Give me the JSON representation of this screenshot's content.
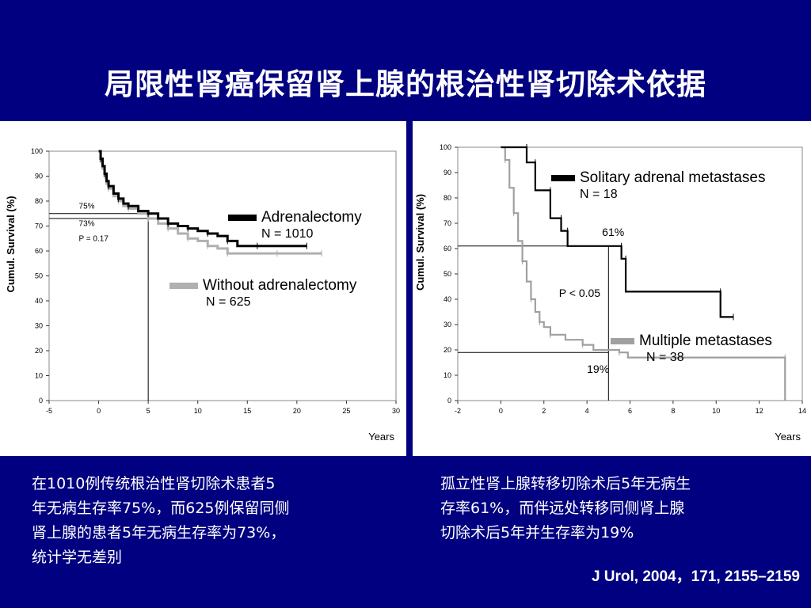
{
  "slide": {
    "title": "局限性肾癌保留肾上腺的根治性肾切除术依据",
    "caption_left": [
      "在1010例传统根治性肾切除术患者5",
      "年无病生存率75%，而625例保留同侧",
      "肾上腺的患者5年无病生存率为73%，",
      "统计学无差别"
    ],
    "caption_right": [
      "孤立性肾上腺转移切除术后5年无病生",
      "存率61%，而伴远处转移同侧肾上腺",
      "切除术后5年并生存率为19%"
    ],
    "citation": "J Urol, 2004，171, 2155–2159"
  },
  "chart_data": [
    {
      "type": "line",
      "ylabel": "Cumul. Survival (%)",
      "xlabel": "Years",
      "xlim": [
        -5,
        30
      ],
      "ylim": [
        0,
        100
      ],
      "x_ticks": [
        -5,
        0,
        5,
        10,
        15,
        20,
        25,
        30
      ],
      "y_ticks": [
        0,
        10,
        20,
        30,
        40,
        50,
        60,
        70,
        80,
        90,
        100
      ],
      "reference_lines": {
        "x": 5,
        "y": [
          75,
          73
        ]
      },
      "annotations": [
        {
          "text": "75%",
          "x": -2,
          "y": 77
        },
        {
          "text": "73%",
          "x": -2,
          "y": 70
        },
        {
          "text": "P = 0.17",
          "x": -2,
          "y": 64
        }
      ],
      "series": [
        {
          "name": "Adrenalectomy",
          "n_label": "N = 1010",
          "color": "#000000",
          "points": [
            [
              0,
              100
            ],
            [
              0.2,
              97
            ],
            [
              0.4,
              94
            ],
            [
              0.6,
              91
            ],
            [
              0.8,
              88
            ],
            [
              1,
              86
            ],
            [
              1.5,
              83
            ],
            [
              2,
              81
            ],
            [
              2.5,
              79
            ],
            [
              3,
              78
            ],
            [
              4,
              76
            ],
            [
              5,
              75
            ],
            [
              6,
              73
            ],
            [
              7,
              71
            ],
            [
              8,
              70
            ],
            [
              9,
              69
            ],
            [
              10,
              68
            ],
            [
              11,
              67
            ],
            [
              12,
              66
            ],
            [
              13,
              64
            ],
            [
              14,
              62
            ],
            [
              16,
              62
            ],
            [
              18,
              62
            ],
            [
              21,
              62
            ]
          ]
        },
        {
          "name": "Without adrenalectomy",
          "n_label": "N = 625",
          "color": "#b0b0b0",
          "points": [
            [
              0,
              100
            ],
            [
              0.2,
              96
            ],
            [
              0.4,
              93
            ],
            [
              0.6,
              90
            ],
            [
              0.8,
              87
            ],
            [
              1,
              85
            ],
            [
              1.5,
              82
            ],
            [
              2,
              80
            ],
            [
              2.5,
              78
            ],
            [
              3,
              77
            ],
            [
              4,
              75
            ],
            [
              5,
              73
            ],
            [
              6,
              71
            ],
            [
              7,
              69
            ],
            [
              8,
              67
            ],
            [
              9,
              65
            ],
            [
              10,
              64
            ],
            [
              11,
              62
            ],
            [
              12,
              61
            ],
            [
              13,
              59
            ],
            [
              15,
              59
            ],
            [
              18,
              59
            ],
            [
              20,
              59
            ],
            [
              22.5,
              59
            ]
          ]
        }
      ]
    },
    {
      "type": "line",
      "ylabel": "Cumul. Survival (%)",
      "xlabel": "Years",
      "xlim": [
        -2,
        14
      ],
      "ylim": [
        0,
        100
      ],
      "x_ticks": [
        -2,
        0,
        2,
        4,
        6,
        8,
        10,
        12,
        14
      ],
      "y_ticks": [
        0,
        10,
        20,
        30,
        40,
        50,
        60,
        70,
        80,
        90,
        100
      ],
      "reference_lines": {
        "x": 5,
        "y": [
          61,
          19
        ]
      },
      "annotations": [
        {
          "text": "61%",
          "x": 4.7,
          "y": 65
        },
        {
          "text": "P < 0.05",
          "x": 2.7,
          "y": 41
        },
        {
          "text": "19%",
          "x": 4.0,
          "y": 11
        }
      ],
      "series": [
        {
          "name": "Solitary adrenal metastases",
          "n_label": "N = 18",
          "color": "#000000",
          "points": [
            [
              0,
              100
            ],
            [
              1.2,
              100
            ],
            [
              1.2,
              94
            ],
            [
              1.6,
              94
            ],
            [
              1.6,
              83
            ],
            [
              2.3,
              83
            ],
            [
              2.3,
              72
            ],
            [
              2.8,
              72
            ],
            [
              2.8,
              67
            ],
            [
              3.1,
              67
            ],
            [
              3.1,
              61
            ],
            [
              5.6,
              61
            ],
            [
              5.6,
              56
            ],
            [
              5.8,
              56
            ],
            [
              5.8,
              43
            ],
            [
              10.2,
              43
            ],
            [
              10.2,
              33
            ],
            [
              10.8,
              33
            ]
          ]
        },
        {
          "name": "Multiple metastases",
          "n_label": "N = 38",
          "color": "#a0a0a0",
          "points": [
            [
              0,
              100
            ],
            [
              0.2,
              95
            ],
            [
              0.4,
              84
            ],
            [
              0.6,
              74
            ],
            [
              0.8,
              63
            ],
            [
              1.0,
              55
            ],
            [
              1.2,
              47
            ],
            [
              1.4,
              40
            ],
            [
              1.6,
              35
            ],
            [
              1.8,
              31
            ],
            [
              2.0,
              29
            ],
            [
              2.3,
              26
            ],
            [
              3.0,
              24
            ],
            [
              3.8,
              22
            ],
            [
              4.3,
              20
            ],
            [
              5.5,
              19
            ],
            [
              5.9,
              17
            ],
            [
              13.2,
              17
            ],
            [
              13.2,
              0
            ]
          ]
        }
      ]
    }
  ]
}
